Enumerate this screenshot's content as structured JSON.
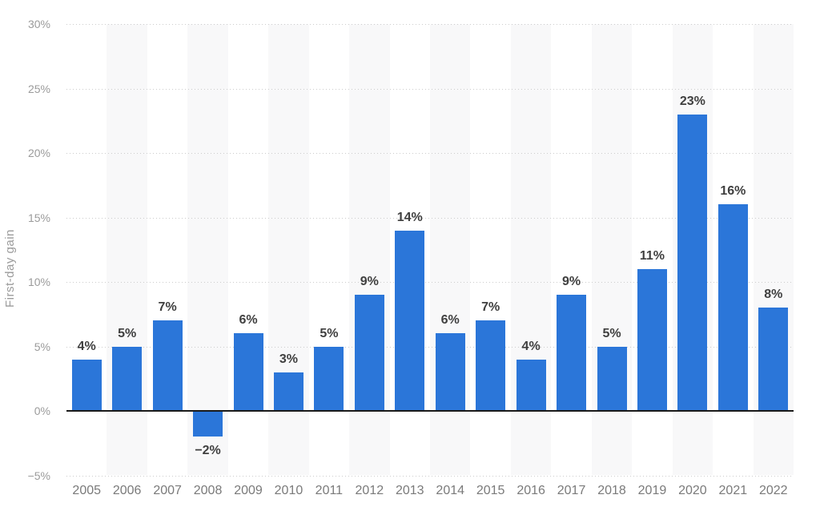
{
  "chart_data": {
    "type": "bar",
    "title": "",
    "xlabel": "",
    "ylabel": "First-day gain",
    "categories": [
      "2005",
      "2006",
      "2007",
      "2008",
      "2009",
      "2010",
      "2011",
      "2012",
      "2013",
      "2014",
      "2015",
      "2016",
      "2017",
      "2018",
      "2019",
      "2020",
      "2021",
      "2022"
    ],
    "values": [
      4,
      5,
      7,
      -2,
      6,
      3,
      5,
      9,
      14,
      6,
      7,
      4,
      9,
      5,
      11,
      23,
      16,
      8
    ],
    "value_labels": [
      "4%",
      "5%",
      "7%",
      "−2%",
      "6%",
      "3%",
      "5%",
      "9%",
      "14%",
      "6%",
      "7%",
      "4%",
      "9%",
      "5%",
      "11%",
      "23%",
      "16%",
      "8%"
    ],
    "yticks": [
      30,
      25,
      20,
      15,
      10,
      5,
      0,
      -5
    ],
    "ytick_labels": [
      "30%",
      "25%",
      "20%",
      "15%",
      "10%",
      "5%",
      "0%",
      "−5%"
    ],
    "ylim": [
      -5,
      30
    ],
    "grid": "horizontal dotted lines every 5%, solid line at 0%",
    "legend": "none",
    "background_stripes": "alternating light column bands behind every even year (2006, 2008, ... 2022)",
    "colors": {
      "bar": "#2b76d9",
      "stripe": "#f8f8f9",
      "gridline": "#cccccc",
      "zero_line": "#1a1a1a",
      "ytick_text": "#9b9b9b",
      "xtick_text": "#7a7a7a",
      "value_text": "#3f3f3f",
      "background": "#ffffff"
    }
  }
}
